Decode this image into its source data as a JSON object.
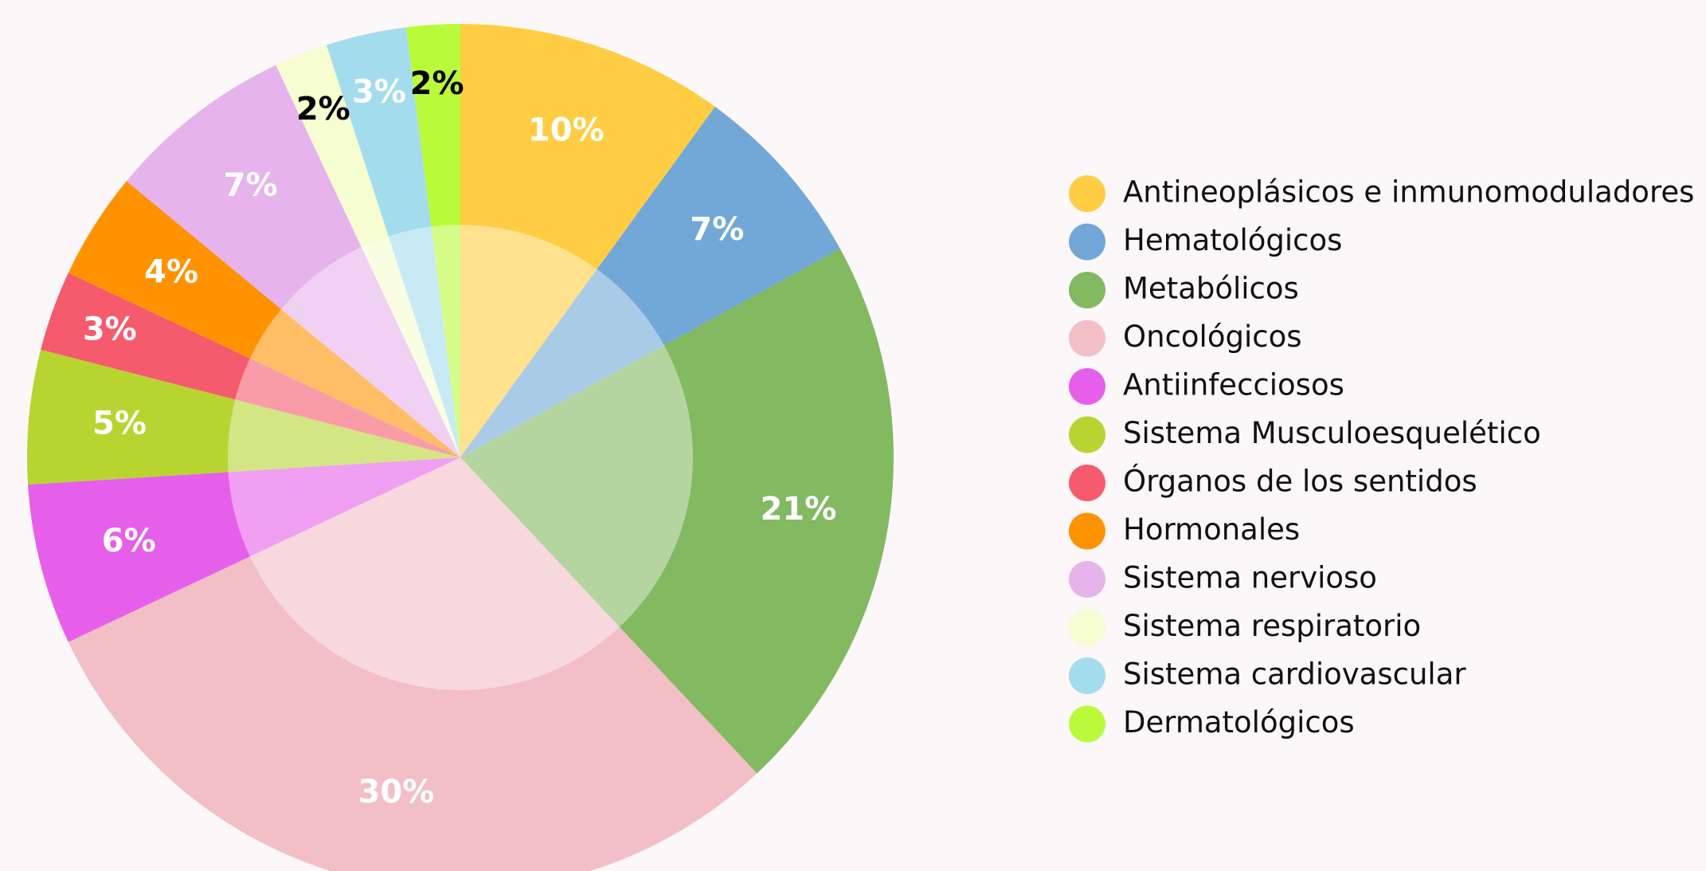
{
  "chart_data": {
    "type": "pie",
    "categories": [
      "Antineoplásicos e inmunomoduladores",
      "Hematológicos",
      "Metabólicos",
      "Oncológicos",
      "Antiinfecciosos",
      "Sistema Musculoesquelético",
      "Órganos de los sentidos",
      "Hormonales",
      "Sistema nervioso",
      "Sistema respiratorio",
      "Sistema cardiovascular",
      "Dermatológicos"
    ],
    "values": [
      10,
      7,
      21,
      30,
      6,
      5,
      3,
      4,
      7,
      2,
      3,
      2
    ],
    "value_labels": [
      "10%",
      "7%",
      "21%",
      "30%",
      "6%",
      "5%",
      "3%",
      "4%",
      "7%",
      "2%",
      "3%",
      "2%"
    ],
    "colors": [
      "#ffcd44",
      "#72a8d8",
      "#82b961",
      "#f2bfc7",
      "#e65fea",
      "#b8d431",
      "#f65a6d",
      "#ff9200",
      "#e6b3ec",
      "#f6fdd0",
      "#a3dced",
      "#b9fb3b"
    ],
    "label_colors": [
      "#ffffff",
      "#ffffff",
      "#ffffff",
      "#ffffff",
      "#ffffff",
      "#ffffff",
      "#ffffff",
      "#ffffff",
      "#ffffff",
      "#000000",
      "#ffffff",
      "#000000"
    ],
    "legend": "right"
  }
}
